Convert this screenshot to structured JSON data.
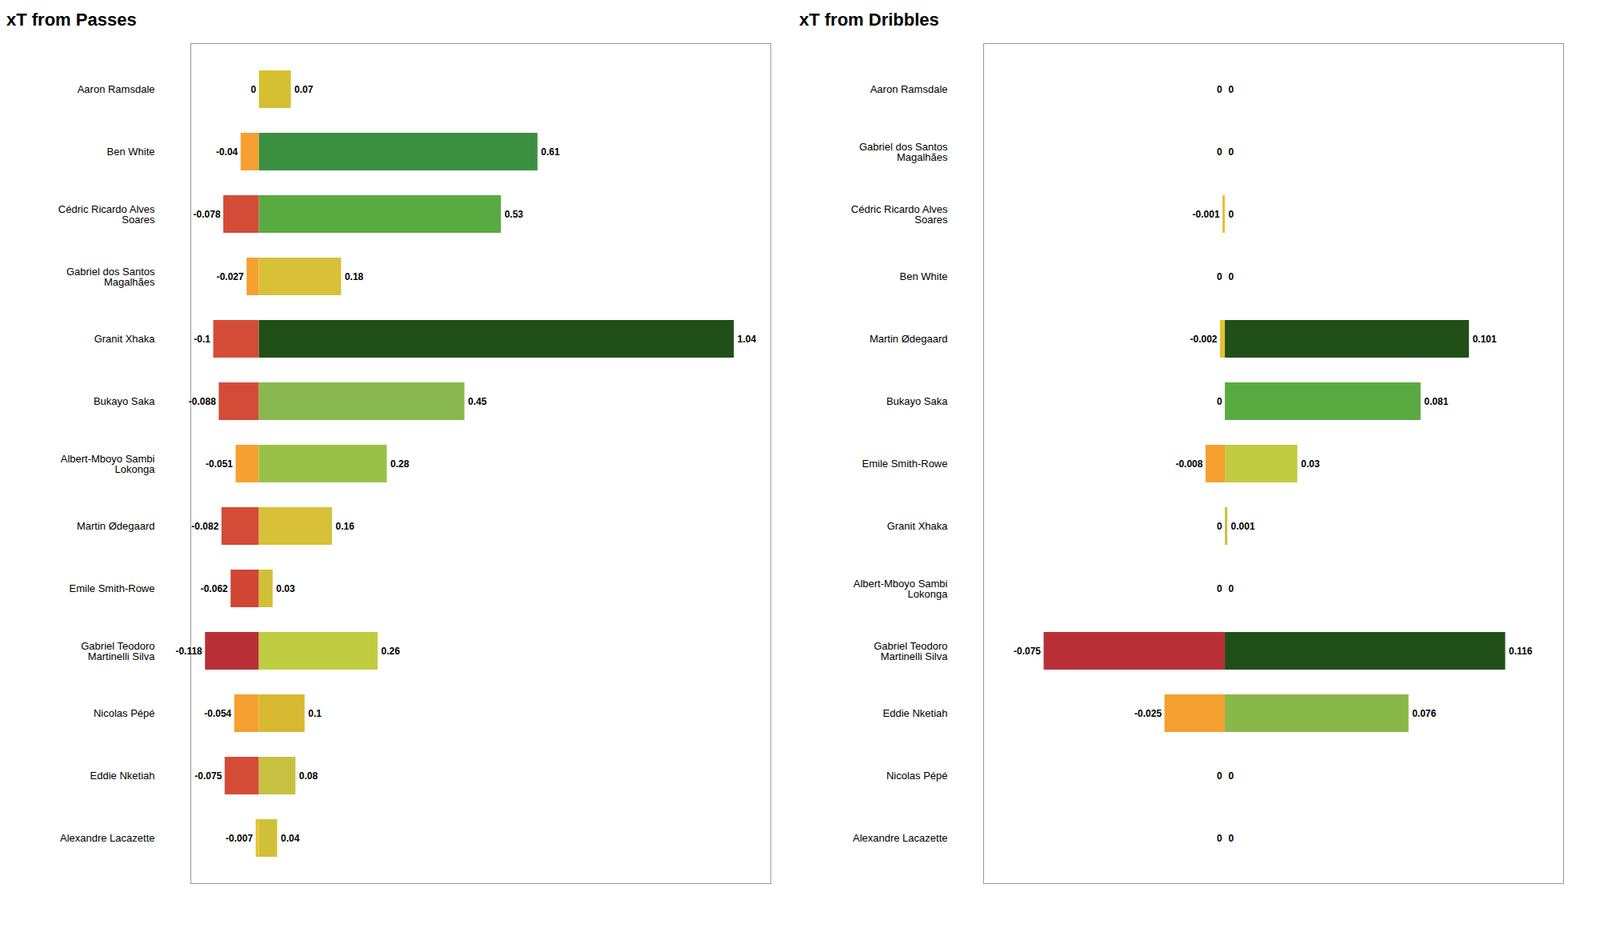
{
  "chart_data": [
    {
      "type": "bar",
      "orientation": "horizontal",
      "stacked": true,
      "title": "xT from Passes",
      "categories": [
        "Aaron Ramsdale",
        "Ben White",
        "Cédric Ricardo Alves\nSoares",
        "Gabriel dos Santos\nMagalhães",
        "Granit Xhaka",
        "Bukayo Saka",
        "Albert-Mboyo Sambi\nLokonga",
        "Martin Ødegaard",
        "Emile Smith-Rowe",
        "Gabriel Teodoro\nMartinelli Silva",
        "Nicolas Pépé",
        "Eddie Nketiah",
        "Alexandre Lacazette"
      ],
      "series": [
        {
          "values": [
            0,
            -0.04,
            -0.078,
            -0.027,
            -0.1,
            -0.088,
            -0.051,
            -0.082,
            -0.062,
            -0.118,
            -0.054,
            -0.075,
            -0.007
          ],
          "colors": [
            "#aaaaaa",
            "#f5a030",
            "#d44b38",
            "#f5a030",
            "#d44b38",
            "#d44b38",
            "#f5a030",
            "#d44b38",
            "#d04535",
            "#b83035",
            "#f5a030",
            "#d44b38",
            "#e8c030"
          ]
        },
        {
          "values": [
            0.07,
            0.61,
            0.53,
            0.18,
            1.04,
            0.45,
            0.28,
            0.16,
            0.03,
            0.26,
            0.1,
            0.08,
            0.04
          ],
          "colors": [
            "#d4c030",
            "#3a9040",
            "#5aaa42",
            "#d8c038",
            "#205018",
            "#8ab850",
            "#98c048",
            "#d8c038",
            "#d0c038",
            "#c0cc40",
            "#d8b830",
            "#c8c040",
            "#d0c038"
          ]
        }
      ],
      "xlim": [
        -0.15,
        1.12
      ],
      "tick_labels": "y",
      "grid": false,
      "data_labels": true
    },
    {
      "type": "bar",
      "orientation": "horizontal",
      "stacked": true,
      "title": "xT from Dribbles",
      "categories": [
        "Aaron Ramsdale",
        "Gabriel dos Santos\nMagalhães",
        "Cédric Ricardo Alves\nSoares",
        "Ben White",
        "Martin Ødegaard",
        "Bukayo Saka",
        "Emile Smith-Rowe",
        "Granit Xhaka",
        "Albert-Mboyo Sambi\nLokonga",
        "Gabriel Teodoro\nMartinelli Silva",
        "Eddie Nketiah",
        "Nicolas Pépé",
        "Alexandre Lacazette"
      ],
      "series": [
        {
          "values": [
            0,
            0,
            -0.001,
            0,
            -0.002,
            0,
            -0.008,
            0,
            0,
            -0.075,
            -0.025,
            0,
            0
          ],
          "colors": [
            "#aaaaaa",
            "#aaaaaa",
            "#e8c030",
            "#aaaaaa",
            "#e8c030",
            "#aaaaaa",
            "#f5a030",
            "#aaaaaa",
            "#aaaaaa",
            "#b83035",
            "#f5a030",
            "#aaaaaa",
            "#aaaaaa"
          ]
        },
        {
          "values": [
            0,
            0,
            0,
            0,
            0.101,
            0.081,
            0.03,
            0.001,
            0,
            0.116,
            0.076,
            0,
            0
          ],
          "colors": [
            "#aaaaaa",
            "#aaaaaa",
            "#aaaaaa",
            "#aaaaaa",
            "#205018",
            "#5aaa42",
            "#c0cc40",
            "#c8c040",
            "#aaaaaa",
            "#205018",
            "#88b848",
            "#aaaaaa",
            "#aaaaaa"
          ]
        }
      ],
      "xlim": [
        -0.1,
        0.14
      ],
      "tick_labels": "y",
      "grid": false,
      "data_labels": true
    }
  ]
}
